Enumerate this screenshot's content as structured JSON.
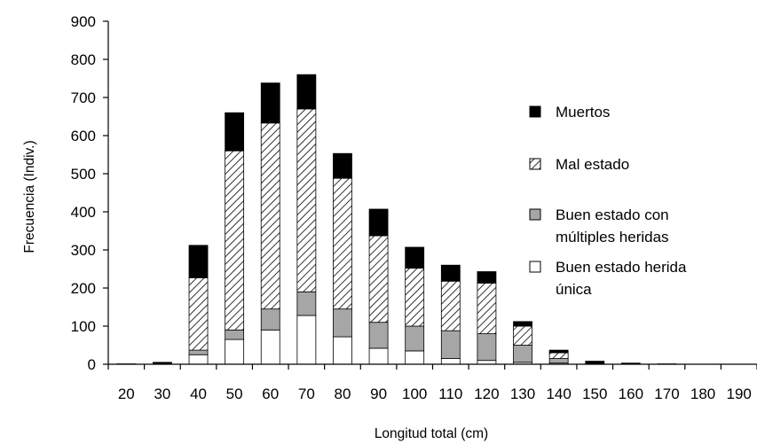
{
  "chart_data": {
    "type": "bar",
    "stacked": true,
    "title": "",
    "xlabel": "Longitud total (cm)",
    "ylabel": "Frecuencia (Indiv.)",
    "ylim": [
      0,
      900
    ],
    "yticks": [
      0,
      100,
      200,
      300,
      400,
      500,
      600,
      700,
      800,
      900
    ],
    "grid": false,
    "legend_position": "right",
    "categories": [
      "20",
      "30",
      "40",
      "50",
      "60",
      "70",
      "80",
      "90",
      "100",
      "110",
      "120",
      "130",
      "140",
      "150",
      "160",
      "170",
      "180",
      "190"
    ],
    "series": [
      {
        "name": "Buen estado herida única",
        "fill": "white",
        "values": [
          0,
          0,
          25,
          65,
          90,
          128,
          72,
          42,
          35,
          15,
          10,
          5,
          3,
          0,
          0,
          0,
          0,
          0
        ]
      },
      {
        "name": "Buen estado con múltiples heridas",
        "fill": "gray",
        "values": [
          0,
          0,
          12,
          25,
          55,
          62,
          73,
          68,
          65,
          73,
          70,
          45,
          12,
          0,
          0,
          0,
          0,
          0
        ]
      },
      {
        "name": "Mal estado",
        "fill": "hatch",
        "values": [
          0,
          0,
          190,
          470,
          488,
          480,
          343,
          227,
          152,
          130,
          133,
          50,
          15,
          0,
          0,
          0,
          0,
          0
        ]
      },
      {
        "name": "Muertos",
        "fill": "black",
        "values": [
          1,
          5,
          85,
          100,
          105,
          90,
          65,
          70,
          55,
          42,
          30,
          12,
          7,
          8,
          3,
          1,
          0,
          0
        ]
      }
    ]
  },
  "legend": {
    "items": [
      {
        "key": "muertos",
        "lines": [
          "Muertos"
        ],
        "fill": "black"
      },
      {
        "key": "mal-estado",
        "lines": [
          "Mal estado"
        ],
        "fill": "hatch"
      },
      {
        "key": "buen-estado-multiples",
        "lines": [
          "Buen estado con",
          "múltiples heridas"
        ],
        "fill": "gray"
      },
      {
        "key": "buen-estado-unica",
        "lines": [
          "Buen estado herida",
          "única"
        ],
        "fill": "white"
      }
    ]
  },
  "colors": {
    "black": "#000000",
    "gray": "#a6a6a6",
    "white": "#ffffff",
    "hatch_line": "#000000",
    "axis": "#000000"
  }
}
